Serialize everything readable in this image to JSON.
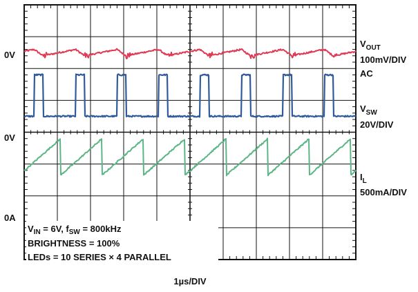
{
  "chart_data": {
    "type": "line",
    "title": "",
    "xlabel": "1µs/DIV",
    "divisions": {
      "x": 10,
      "y": 8
    },
    "x_range_us": [
      0,
      10
    ],
    "period_us": 1.25,
    "channels": [
      {
        "name": "VOUT",
        "label_main": "V",
        "label_sub": "OUT",
        "scale": "100mV/DIV",
        "coupling": "AC",
        "ground_label": "0V",
        "ground_div": 1.5,
        "color": "#e03a55",
        "ripple_mv_pp": 20,
        "ripple_shape": "sawtooth, falling during switch-on, rising during switch-off"
      },
      {
        "name": "VSW",
        "label_main": "V",
        "label_sub": "SW",
        "scale": "20V/DIV",
        "ground_label": "0V",
        "ground_div": 3.5,
        "color": "#2f5b9a",
        "high_v": 26,
        "low_v": 0,
        "pulse_width_us": 0.27
      },
      {
        "name": "IL",
        "label_main": "I",
        "label_sub": "L",
        "scale": "500mA/DIV",
        "ground_label": "0A",
        "ground_div": 6.2,
        "color": "#5cb585",
        "i_min_ma": 425,
        "i_max_ma": 1000
      }
    ],
    "grid": true
  },
  "info": {
    "line1_a": "V",
    "line1_a_sub": "IN",
    "line1_b": " = 6V, f",
    "line1_b_sub": "SW",
    "line1_c": " = 800kHz",
    "line2": "BRIGHTNESS = 100%",
    "line3": "LEDs = 10 SERIES × 4 PARALLEL"
  }
}
